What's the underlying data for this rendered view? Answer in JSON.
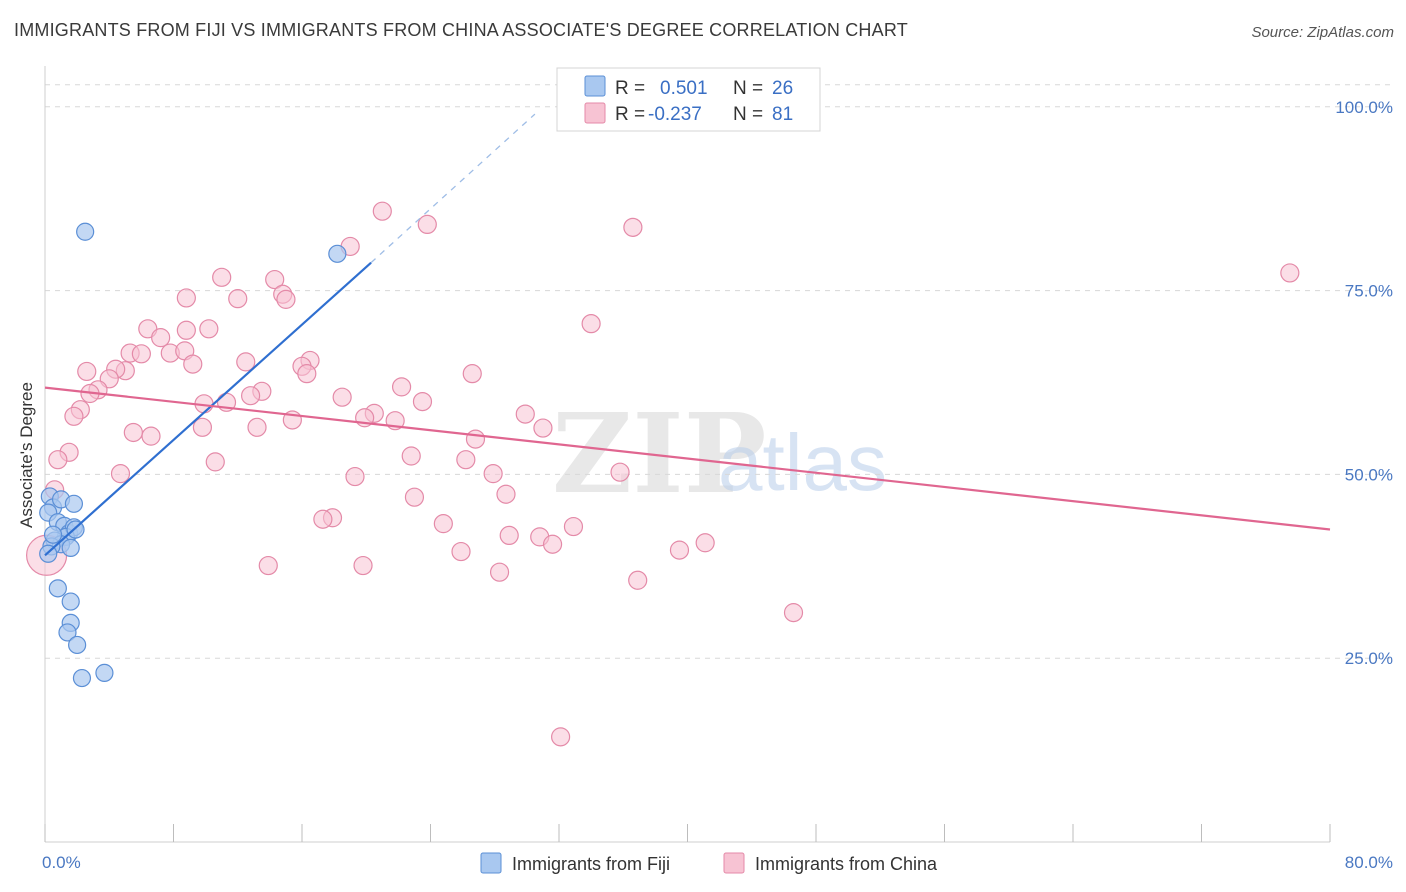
{
  "header": {
    "title": "IMMIGRANTS FROM FIJI VS IMMIGRANTS FROM CHINA ASSOCIATE'S DEGREE CORRELATION CHART",
    "source": "Source: ZipAtlas.com"
  },
  "watermark": {
    "zip": "ZIP",
    "atlas": "atlas"
  },
  "colors": {
    "fiji_fill": "#a9c8f0",
    "fiji_stroke": "#5b8fd6",
    "fiji_line": "#2f6fd0",
    "china_fill": "#f7c3d3",
    "china_stroke": "#e48aa8",
    "china_line": "#e06690",
    "grid": "#d8d8d8",
    "tick_text": "#4a78c2"
  },
  "legend": {
    "rows": [
      {
        "r_label": "R =",
        "r_value": "0.501",
        "n_label": "N =",
        "n_value": "26"
      },
      {
        "r_label": "R =",
        "r_value": "-0.237",
        "n_label": "N =",
        "n_value": "81"
      }
    ]
  },
  "bottom_legend": {
    "fiji": "Immigrants from Fiji",
    "china": "Immigrants from China"
  },
  "chart_data": {
    "type": "scatter",
    "title": "IMMIGRANTS FROM FIJI VS IMMIGRANTS FROM CHINA ASSOCIATE'S DEGREE CORRELATION CHART",
    "xlabel": "",
    "ylabel": "Associate's Degree",
    "xlim": [
      0,
      80
    ],
    "ylim": [
      0,
      105
    ],
    "x_tick_labels": [
      "0.0%",
      "80.0%"
    ],
    "y_ticks": [
      25,
      50,
      75,
      100
    ],
    "y_tick_labels": [
      "25.0%",
      "50.0%",
      "75.0%",
      "100.0%"
    ],
    "series": [
      {
        "name": "Immigrants from Fiji",
        "R": 0.501,
        "N": 26,
        "trend": {
          "x0": 0,
          "y0": 39,
          "x1": 20.3,
          "y1": 78.8,
          "dash_x1": 30.5,
          "dash_y1": 99
        },
        "points": [
          [
            2.5,
            83
          ],
          [
            18.2,
            80
          ],
          [
            0.3,
            47
          ],
          [
            0.5,
            45.5
          ],
          [
            0.2,
            44.8
          ],
          [
            1.0,
            46.6
          ],
          [
            1.8,
            46
          ],
          [
            0.8,
            43.5
          ],
          [
            1.2,
            43
          ],
          [
            1.5,
            42
          ],
          [
            1.8,
            42.8
          ],
          [
            1.3,
            41.5
          ],
          [
            0.6,
            41
          ],
          [
            1.0,
            40.5
          ],
          [
            1.6,
            40
          ],
          [
            0.4,
            40.2
          ],
          [
            0.8,
            34.5
          ],
          [
            1.6,
            32.7
          ],
          [
            1.6,
            29.8
          ],
          [
            1.4,
            28.5
          ],
          [
            2.0,
            26.8
          ],
          [
            2.3,
            22.3
          ],
          [
            3.7,
            23
          ],
          [
            0.2,
            39.2
          ],
          [
            0.5,
            41.8
          ],
          [
            1.9,
            42.5
          ]
        ]
      },
      {
        "name": "Immigrants from China",
        "R": -0.237,
        "N": 81,
        "trend": {
          "x0": 0,
          "y0": 61.8,
          "x1": 80,
          "y1": 42.5
        },
        "points": [
          [
            21,
            85.8
          ],
          [
            23.8,
            84
          ],
          [
            19,
            81
          ],
          [
            36.6,
            83.6
          ],
          [
            77.5,
            77.4
          ],
          [
            11,
            76.8
          ],
          [
            14.3,
            76.5
          ],
          [
            8.8,
            74
          ],
          [
            12,
            73.9
          ],
          [
            14.8,
            74.5
          ],
          [
            15,
            73.8
          ],
          [
            34,
            70.5
          ],
          [
            6.4,
            69.8
          ],
          [
            10.2,
            69.8
          ],
          [
            8.8,
            69.6
          ],
          [
            7.2,
            68.6
          ],
          [
            5.3,
            66.5
          ],
          [
            6.0,
            66.4
          ],
          [
            7.8,
            66.5
          ],
          [
            8.7,
            66.8
          ],
          [
            12.5,
            65.3
          ],
          [
            16.5,
            65.5
          ],
          [
            9.2,
            65
          ],
          [
            16.0,
            64.7
          ],
          [
            2.6,
            64
          ],
          [
            5.0,
            64.1
          ],
          [
            4.4,
            64.3
          ],
          [
            16.3,
            63.7
          ],
          [
            26.6,
            63.7
          ],
          [
            4.0,
            63
          ],
          [
            3.3,
            61.5
          ],
          [
            13.5,
            61.3
          ],
          [
            22.2,
            61.9
          ],
          [
            2.8,
            61
          ],
          [
            12.8,
            60.7
          ],
          [
            18.5,
            60.5
          ],
          [
            23.5,
            59.9
          ],
          [
            9.9,
            59.6
          ],
          [
            11.3,
            59.8
          ],
          [
            2.2,
            58.8
          ],
          [
            20.5,
            58.3
          ],
          [
            1.8,
            57.9
          ],
          [
            19.9,
            57.7
          ],
          [
            15.4,
            57.4
          ],
          [
            21.8,
            57.3
          ],
          [
            29.9,
            58.2
          ],
          [
            9.8,
            56.4
          ],
          [
            13.2,
            56.4
          ],
          [
            31.0,
            56.3
          ],
          [
            5.5,
            55.7
          ],
          [
            6.6,
            55.2
          ],
          [
            26.8,
            54.8
          ],
          [
            1.5,
            53
          ],
          [
            22.8,
            52.5
          ],
          [
            0.8,
            52
          ],
          [
            10.6,
            51.7
          ],
          [
            26.2,
            52
          ],
          [
            4.7,
            50.1
          ],
          [
            19.3,
            49.7
          ],
          [
            27.9,
            50.1
          ],
          [
            35.8,
            50.3
          ],
          [
            0.6,
            47.9
          ],
          [
            23.0,
            46.9
          ],
          [
            28.7,
            47.3
          ],
          [
            17.9,
            44.1
          ],
          [
            17.3,
            43.9
          ],
          [
            24.8,
            43.3
          ],
          [
            32.9,
            42.9
          ],
          [
            28.9,
            41.7
          ],
          [
            30.8,
            41.5
          ],
          [
            31.6,
            40.5
          ],
          [
            25.9,
            39.5
          ],
          [
            39.5,
            39.7
          ],
          [
            41.1,
            40.7
          ],
          [
            13.9,
            37.6
          ],
          [
            19.8,
            37.6
          ],
          [
            28.3,
            36.7
          ],
          [
            36.9,
            35.6
          ],
          [
            46.6,
            31.2
          ],
          [
            32.1,
            14.3
          ],
          [
            0.1,
            39
          ]
        ]
      }
    ]
  }
}
